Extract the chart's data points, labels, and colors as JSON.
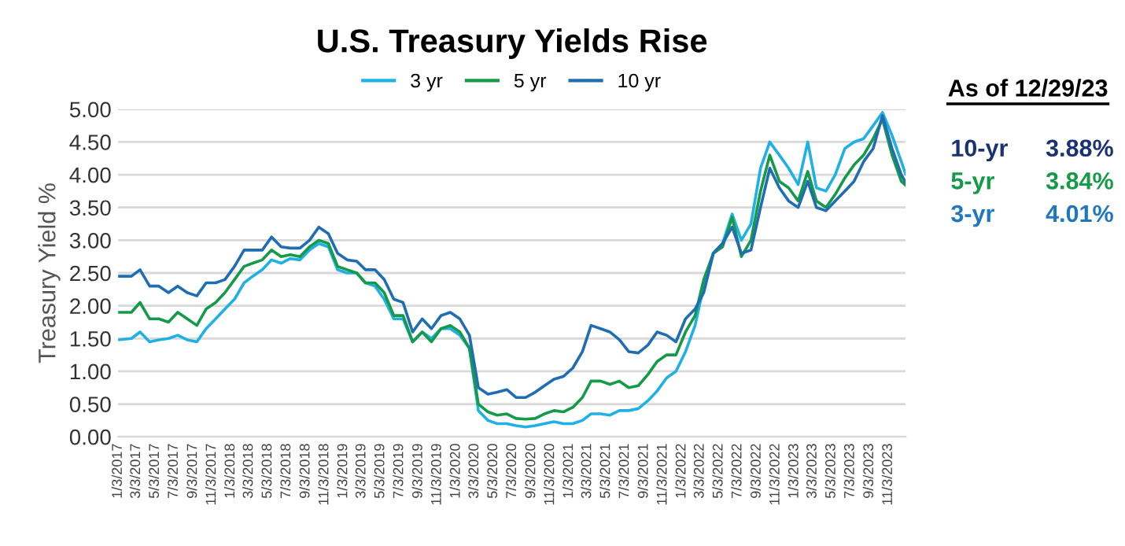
{
  "chart_data": {
    "type": "line",
    "title": "U.S. Treasury Yields Rise",
    "ylabel": "Treasury Yield %",
    "x": [
      "2017-01-03",
      "2017-02-15",
      "2017-03-15",
      "2017-04-15",
      "2017-05-15",
      "2017-06-15",
      "2017-07-15",
      "2017-08-15",
      "2017-09-15",
      "2017-10-15",
      "2017-11-15",
      "2017-12-15",
      "2018-01-15",
      "2018-02-15",
      "2018-03-15",
      "2018-04-15",
      "2018-05-15",
      "2018-06-15",
      "2018-07-15",
      "2018-08-15",
      "2018-09-15",
      "2018-10-15",
      "2018-11-15",
      "2018-12-15",
      "2019-01-15",
      "2019-02-15",
      "2019-03-15",
      "2019-04-15",
      "2019-05-15",
      "2019-06-15",
      "2019-07-15",
      "2019-08-15",
      "2019-09-15",
      "2019-10-15",
      "2019-11-15",
      "2019-12-15",
      "2020-01-15",
      "2020-02-15",
      "2020-03-15",
      "2020-04-15",
      "2020-05-15",
      "2020-06-15",
      "2020-07-15",
      "2020-08-15",
      "2020-09-15",
      "2020-10-15",
      "2020-11-15",
      "2020-12-15",
      "2021-01-15",
      "2021-02-15",
      "2021-03-15",
      "2021-04-15",
      "2021-05-15",
      "2021-06-15",
      "2021-07-15",
      "2021-08-15",
      "2021-09-15",
      "2021-10-15",
      "2021-11-15",
      "2021-12-15",
      "2022-01-15",
      "2022-02-15",
      "2022-03-15",
      "2022-04-15",
      "2022-05-15",
      "2022-06-15",
      "2022-07-15",
      "2022-08-15",
      "2022-09-15",
      "2022-10-15",
      "2022-11-15",
      "2022-12-15",
      "2023-01-15",
      "2023-02-15",
      "2023-03-15",
      "2023-04-15",
      "2023-05-15",
      "2023-06-15",
      "2023-07-15",
      "2023-08-15",
      "2023-09-15",
      "2023-10-15",
      "2023-11-15",
      "2023-12-15",
      "2023-12-29"
    ],
    "series": [
      {
        "name": "3 yr",
        "color": "#1fb1e6",
        "values": [
          1.48,
          1.5,
          1.6,
          1.45,
          1.48,
          1.5,
          1.55,
          1.48,
          1.45,
          1.65,
          1.8,
          1.95,
          2.1,
          2.35,
          2.45,
          2.55,
          2.7,
          2.65,
          2.72,
          2.7,
          2.85,
          2.95,
          2.9,
          2.55,
          2.5,
          2.5,
          2.35,
          2.3,
          2.1,
          1.8,
          1.8,
          1.45,
          1.6,
          1.5,
          1.65,
          1.65,
          1.55,
          1.35,
          0.4,
          0.25,
          0.2,
          0.2,
          0.17,
          0.15,
          0.17,
          0.2,
          0.23,
          0.2,
          0.2,
          0.25,
          0.35,
          0.35,
          0.33,
          0.4,
          0.4,
          0.43,
          0.55,
          0.7,
          0.9,
          1.0,
          1.3,
          1.7,
          2.3,
          2.8,
          2.95,
          3.4,
          3.0,
          3.25,
          4.1,
          4.5,
          4.3,
          4.1,
          3.85,
          4.5,
          3.8,
          3.75,
          4.0,
          4.4,
          4.5,
          4.55,
          4.75,
          4.95,
          4.6,
          4.2,
          4.01
        ]
      },
      {
        "name": "5 yr",
        "color": "#149a48",
        "values": [
          1.9,
          1.9,
          2.05,
          1.8,
          1.8,
          1.75,
          1.9,
          1.8,
          1.7,
          1.95,
          2.05,
          2.2,
          2.4,
          2.6,
          2.65,
          2.7,
          2.85,
          2.75,
          2.78,
          2.75,
          2.9,
          3.0,
          2.95,
          2.6,
          2.55,
          2.5,
          2.35,
          2.35,
          2.2,
          1.85,
          1.85,
          1.45,
          1.6,
          1.45,
          1.65,
          1.7,
          1.6,
          1.35,
          0.5,
          0.38,
          0.33,
          0.35,
          0.28,
          0.27,
          0.28,
          0.35,
          0.4,
          0.38,
          0.45,
          0.6,
          0.85,
          0.85,
          0.8,
          0.85,
          0.75,
          0.78,
          0.95,
          1.15,
          1.25,
          1.25,
          1.6,
          1.85,
          2.4,
          2.8,
          2.9,
          3.35,
          2.75,
          3.0,
          3.75,
          4.3,
          3.9,
          3.8,
          3.6,
          4.05,
          3.6,
          3.5,
          3.7,
          3.95,
          4.15,
          4.3,
          4.55,
          4.85,
          4.3,
          3.9,
          3.84
        ]
      },
      {
        "name": "10 yr",
        "color": "#1f6db3",
        "values": [
          2.45,
          2.45,
          2.55,
          2.3,
          2.3,
          2.2,
          2.3,
          2.2,
          2.15,
          2.35,
          2.35,
          2.4,
          2.6,
          2.85,
          2.85,
          2.85,
          3.05,
          2.9,
          2.88,
          2.88,
          3.0,
          3.2,
          3.1,
          2.8,
          2.7,
          2.68,
          2.55,
          2.55,
          2.4,
          2.1,
          2.05,
          1.6,
          1.8,
          1.65,
          1.85,
          1.9,
          1.8,
          1.55,
          0.75,
          0.65,
          0.68,
          0.72,
          0.6,
          0.6,
          0.68,
          0.78,
          0.88,
          0.92,
          1.05,
          1.3,
          1.7,
          1.65,
          1.6,
          1.48,
          1.3,
          1.28,
          1.4,
          1.6,
          1.55,
          1.45,
          1.8,
          1.95,
          2.2,
          2.8,
          2.95,
          3.2,
          2.8,
          2.85,
          3.5,
          4.1,
          3.8,
          3.6,
          3.5,
          3.9,
          3.5,
          3.45,
          3.6,
          3.75,
          3.9,
          4.2,
          4.4,
          4.9,
          4.4,
          4.0,
          3.88
        ]
      }
    ],
    "xlim": [
      "2017-01-03",
      "2023-12-29"
    ],
    "xticks": [
      {
        "value": "2017-01-03",
        "label": "1/3/2017"
      },
      {
        "value": "2017-03-03",
        "label": "3/3/2017"
      },
      {
        "value": "2017-05-03",
        "label": "5/3/2017"
      },
      {
        "value": "2017-07-03",
        "label": "7/3/2017"
      },
      {
        "value": "2017-09-03",
        "label": "9/3/2017"
      },
      {
        "value": "2017-11-03",
        "label": "11/3/2017"
      },
      {
        "value": "2018-01-03",
        "label": "1/3/2018"
      },
      {
        "value": "2018-03-03",
        "label": "3/3/2018"
      },
      {
        "value": "2018-05-03",
        "label": "5/3/2018"
      },
      {
        "value": "2018-07-03",
        "label": "7/3/2018"
      },
      {
        "value": "2018-09-03",
        "label": "9/3/2018"
      },
      {
        "value": "2018-11-03",
        "label": "11/3/2018"
      },
      {
        "value": "2019-01-03",
        "label": "1/3/2019"
      },
      {
        "value": "2019-03-03",
        "label": "3/3/2019"
      },
      {
        "value": "2019-05-03",
        "label": "5/3/2019"
      },
      {
        "value": "2019-07-03",
        "label": "7/3/2019"
      },
      {
        "value": "2019-09-03",
        "label": "9/3/2019"
      },
      {
        "value": "2019-11-03",
        "label": "11/3/2019"
      },
      {
        "value": "2020-01-03",
        "label": "1/3/2020"
      },
      {
        "value": "2020-03-03",
        "label": "3/3/2020"
      },
      {
        "value": "2020-05-03",
        "label": "5/3/2020"
      },
      {
        "value": "2020-07-03",
        "label": "7/3/2020"
      },
      {
        "value": "2020-09-03",
        "label": "9/3/2020"
      },
      {
        "value": "2020-11-03",
        "label": "11/3/2020"
      },
      {
        "value": "2021-01-03",
        "label": "1/3/2021"
      },
      {
        "value": "2021-03-03",
        "label": "3/3/2021"
      },
      {
        "value": "2021-05-03",
        "label": "5/3/2021"
      },
      {
        "value": "2021-07-03",
        "label": "7/3/2021"
      },
      {
        "value": "2021-09-03",
        "label": "9/3/2021"
      },
      {
        "value": "2021-11-03",
        "label": "11/3/2021"
      },
      {
        "value": "2022-01-03",
        "label": "1/3/2022"
      },
      {
        "value": "2022-03-03",
        "label": "3/3/2022"
      },
      {
        "value": "2022-05-03",
        "label": "5/3/2022"
      },
      {
        "value": "2022-07-03",
        "label": "7/3/2022"
      },
      {
        "value": "2022-09-03",
        "label": "9/3/2022"
      },
      {
        "value": "2022-11-03",
        "label": "11/3/2022"
      },
      {
        "value": "2023-01-03",
        "label": "1/3/2023"
      },
      {
        "value": "2023-03-03",
        "label": "3/3/2023"
      },
      {
        "value": "2023-05-03",
        "label": "5/3/2023"
      },
      {
        "value": "2023-07-03",
        "label": "7/3/2023"
      },
      {
        "value": "2023-09-03",
        "label": "9/3/2023"
      },
      {
        "value": "2023-11-03",
        "label": "11/3/2023"
      }
    ],
    "ylim": [
      0,
      5
    ],
    "yticks": [
      {
        "value": 0,
        "label": "0.00"
      },
      {
        "value": 0.5,
        "label": "0.50"
      },
      {
        "value": 1,
        "label": "1.00"
      },
      {
        "value": 1.5,
        "label": "1.50"
      },
      {
        "value": 2,
        "label": "2.00"
      },
      {
        "value": 2.5,
        "label": "2.50"
      },
      {
        "value": 3,
        "label": "3.00"
      },
      {
        "value": 3.5,
        "label": "3.50"
      },
      {
        "value": 4,
        "label": "4.00"
      },
      {
        "value": 4.5,
        "label": "4.50"
      },
      {
        "value": 5,
        "label": "5.00"
      }
    ],
    "grid": "y",
    "legend": "top",
    "marker": "none",
    "line_style": "solid",
    "annotations": [
      "As of 12/29/23",
      "10-yr",
      "3.88%",
      "5-yr",
      "3.84%",
      "3-yr",
      "4.01%"
    ]
  }
}
